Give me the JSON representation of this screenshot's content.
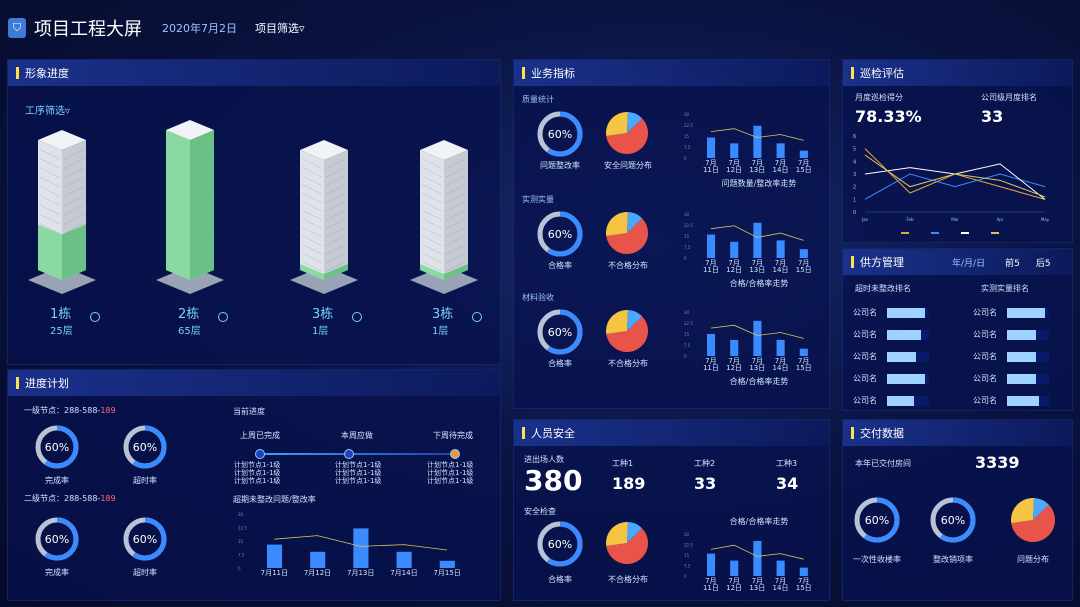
{
  "header": {
    "logo": "shield-icon",
    "title": "项目工程大屏",
    "date": "2020年7月2日",
    "filter": "项目筛选▿"
  },
  "progress": {
    "title": "形象进度",
    "filter": "工序筛选▿",
    "buildings": [
      {
        "name": "1栋",
        "floors": "25层",
        "fill": 0.35
      },
      {
        "name": "2栋",
        "floors": "65层",
        "fill": 1.0
      },
      {
        "name": "3栋",
        "floors": "1层",
        "fill": 0.05
      },
      {
        "name": "3栋",
        "floors": "1层",
        "fill": 0.05
      }
    ]
  },
  "plan": {
    "title": "进度计划",
    "level1_label": "一级节点：",
    "level1_a": "288-588-",
    "level1_b": "189",
    "level2_label": "二级节点：",
    "level2_a": "288-588-",
    "level2_b": "189",
    "donuts": [
      {
        "pct": "60%",
        "cap": "完成率",
        "value": 0.6,
        "color": "#3a8bff"
      },
      {
        "pct": "60%",
        "cap": "超时率",
        "value": 0.6,
        "color": "#3a8bff"
      },
      {
        "pct": "60%",
        "cap": "完成率",
        "value": 0.6,
        "color": "#3a8bff"
      },
      {
        "pct": "60%",
        "cap": "超时率",
        "value": 0.6,
        "color": "#3a8bff"
      }
    ],
    "current_title": "当前进度",
    "stages": [
      "上周已完成",
      "本周应做",
      "下周待完成"
    ],
    "nodes": [
      "计划节点1-1级",
      "计划节点1-1级",
      "计划节点1-1级"
    ],
    "chart_title": "超期未整改问题/整改率"
  },
  "biz": {
    "title": "业务指标",
    "sections": [
      {
        "name": "质量统计",
        "pct": "60%",
        "donut_cap": "问题整改率",
        "pie_cap": "安全问题分布",
        "chart_cap": "问题数量/整改率走势"
      },
      {
        "name": "实测实量",
        "pct": "60%",
        "donut_cap": "合格率",
        "pie_cap": "不合格分布",
        "chart_cap": "合格/合格率走势"
      },
      {
        "name": "材料验收",
        "pct": "60%",
        "donut_cap": "合格率",
        "pie_cap": "不合格分布",
        "chart_cap": "合格/合格率走势"
      }
    ]
  },
  "safety": {
    "title": "人员安全",
    "entry_label": "进出场人数",
    "entry_value": "380",
    "types": [
      {
        "label": "工种1",
        "value": "189"
      },
      {
        "label": "工种2",
        "value": "33"
      },
      {
        "label": "工种3",
        "value": "34"
      }
    ],
    "check_label": "安全检查",
    "pct": "60%",
    "donut_cap": "合格率",
    "pie_cap": "不合格分布",
    "chart_cap": "合格/合格率走势"
  },
  "inspect": {
    "title": "巡检评估",
    "score_label": "月度巡检得分",
    "score_value": "78.33%",
    "rank_label": "公司级月度排名",
    "rank_value": "33"
  },
  "supply": {
    "title": "供方管理",
    "period": "年/月/日",
    "front": "前5",
    "back": "后5",
    "left_title": "超时未整改排名",
    "right_title": "实测实量排名",
    "left": [
      {
        "name": "公司名",
        "value": 0.9
      },
      {
        "name": "公司名",
        "value": 0.8
      },
      {
        "name": "公司名",
        "value": 0.7
      },
      {
        "name": "公司名",
        "value": 0.9
      },
      {
        "name": "公司名",
        "value": 0.65
      }
    ],
    "right": [
      {
        "name": "公司名",
        "value": 0.9
      },
      {
        "name": "公司名",
        "value": 0.7
      },
      {
        "name": "公司名",
        "value": 0.7
      },
      {
        "name": "公司名",
        "value": 0.7
      },
      {
        "name": "公司名",
        "value": 0.75
      }
    ]
  },
  "delivery": {
    "title": "交付数据",
    "label": "本年已交付房间",
    "value": "3339",
    "d1_pct": "60%",
    "d1_cap": "一次性收楼率",
    "d2_pct": "60%",
    "d2_cap": "整改销项率",
    "pie_cap": "问题分布"
  },
  "chart_data": [
    {
      "type": "bar",
      "categories": [
        "7月\n11日",
        "7月\n12日",
        "7月\n13日",
        "7月\n14日",
        "7月\n15日"
      ],
      "values": [
        14,
        10,
        22,
        10,
        5
      ],
      "line": [
        18,
        20,
        14,
        16,
        12
      ],
      "note": "problems/rectification trend"
    },
    {
      "type": "bar",
      "categories": [
        "7月\n11日",
        "7月\n12日",
        "7月\n13日",
        "7月\n14日",
        "7月\n15日"
      ],
      "values": [
        16,
        11,
        24,
        12,
        6
      ],
      "line": [
        20,
        22,
        14,
        17,
        12
      ]
    },
    {
      "type": "bar",
      "categories": [
        "7月\n11日",
        "7月\n12日",
        "7月\n13日",
        "7月\n14日",
        "7月\n15日"
      ],
      "values": [
        15,
        11,
        24,
        11,
        5
      ],
      "line": [
        19,
        21,
        14,
        16,
        12
      ]
    },
    {
      "type": "bar",
      "categories": [
        "7月\n11日",
        "7月\n12日",
        "7月\n13日",
        "7月\n14日",
        "7月\n15日"
      ],
      "values": [
        16,
        11,
        25,
        11,
        6
      ],
      "line": [
        19,
        22,
        14,
        16,
        12
      ]
    },
    {
      "type": "bar",
      "categories": [
        "7月11日",
        "7月12日",
        "7月13日",
        "7月14日",
        "7月15日"
      ],
      "values": [
        13,
        9,
        22,
        9,
        4
      ],
      "line": [
        16,
        18,
        12,
        13,
        10
      ]
    },
    {
      "type": "line",
      "categories": [
        "Jan",
        "Feb",
        "Mar",
        "Apr",
        "May"
      ],
      "series": [
        {
          "color": "#e8a33d",
          "values": [
            5,
            1.5,
            3,
            2,
            1
          ]
        },
        {
          "color": "#3a8bff",
          "values": [
            1,
            3,
            2,
            3,
            2
          ]
        },
        {
          "color": "#ffffff",
          "values": [
            3,
            3.5,
            3,
            3.8,
            1
          ]
        },
        {
          "color": "#d8c85a",
          "values": [
            4.5,
            2,
            3,
            2.5,
            1.2
          ]
        }
      ],
      "ylim": [
        0,
        6
      ]
    }
  ],
  "pies": [
    {
      "slices": [
        {
          "v": 0.6,
          "c": "#e8534a"
        },
        {
          "v": 0.28,
          "c": "#f4c542"
        },
        {
          "v": 0.12,
          "c": "#4aa8ff"
        }
      ]
    }
  ]
}
